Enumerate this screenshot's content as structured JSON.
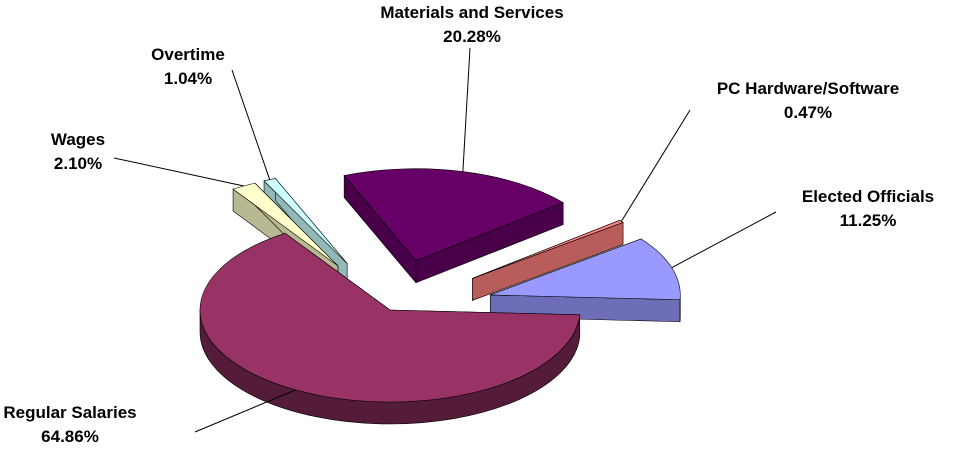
{
  "chart_data": {
    "type": "pie",
    "style": "3d-exploded",
    "title": "",
    "legend": "none",
    "slices": [
      {
        "label": "Regular Salaries",
        "value": 64.86,
        "value_label": "64.86%",
        "color": "#993366"
      },
      {
        "label": "Wages",
        "value": 2.1,
        "value_label": "2.10%",
        "color": "#ffffcc"
      },
      {
        "label": "Overtime",
        "value": 1.04,
        "value_label": "1.04%",
        "color": "#ccffff"
      },
      {
        "label": "Materials and Services",
        "value": 20.28,
        "value_label": "20.28%",
        "color": "#660066"
      },
      {
        "label": "PC Hardware/Software",
        "value": 0.47,
        "value_label": "0.47%",
        "color": "#ff8080"
      },
      {
        "label": "Elected Officials",
        "value": 11.25,
        "value_label": "11.25%",
        "color": "#9999ff"
      }
    ]
  }
}
